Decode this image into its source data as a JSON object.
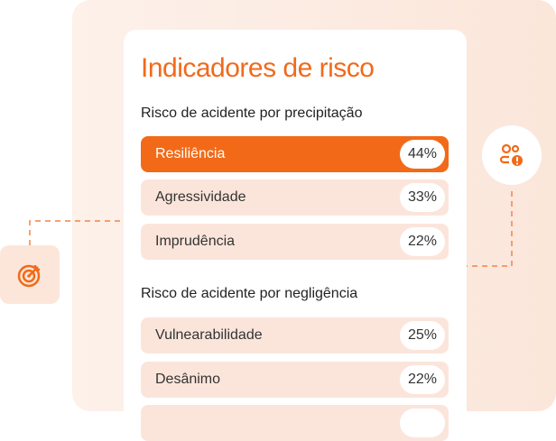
{
  "title": "Indicadores de risco",
  "sections": [
    {
      "label": "Risco de acidente por precipitação",
      "items": [
        {
          "label": "Resiliência",
          "value": "44%"
        },
        {
          "label": "Agressividade",
          "value": "33%"
        },
        {
          "label": "Imprudência",
          "value": "22%"
        }
      ]
    },
    {
      "label": "Risco de acidente por negligência",
      "items": [
        {
          "label": "Vulnearabilidade",
          "value": "25%"
        },
        {
          "label": "Desânimo",
          "value": "22%"
        },
        {
          "label": "",
          "value": ""
        }
      ]
    }
  ],
  "colors": {
    "accent": "#f26a18",
    "row_bg": "#fbe5db"
  },
  "icons": {
    "left": "target-icon",
    "right": "users-alert-icon"
  }
}
